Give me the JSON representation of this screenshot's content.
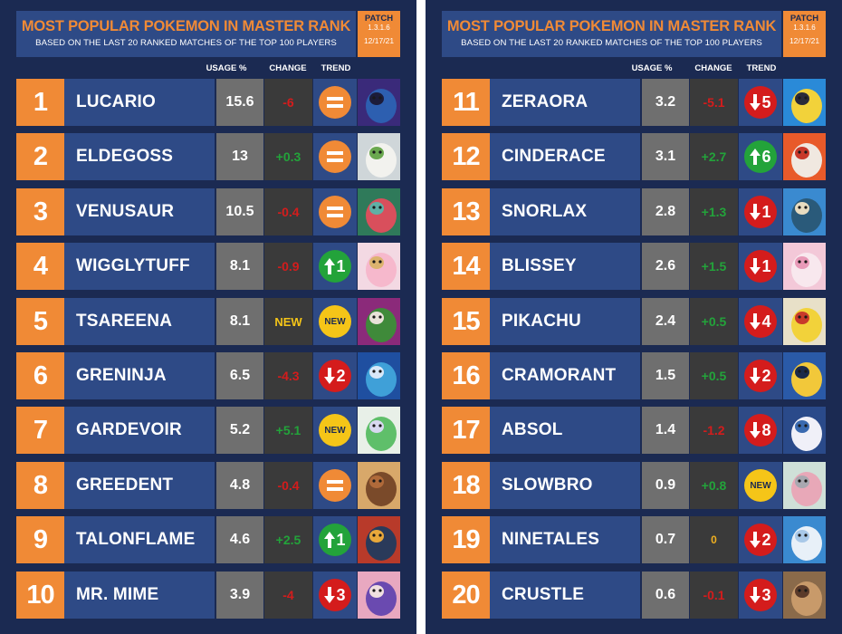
{
  "colors": {
    "background": "#1b2a52",
    "row_blue": "#2e4a86",
    "orange": "#f08a36",
    "usage_gray": "#6f6f6f",
    "change_dark": "#3a3a3a",
    "positive": "#23a33a",
    "negative": "#d41c1c",
    "new_yellow": "#f5c518"
  },
  "panels": [
    {
      "header": {
        "title": "MOST POPULAR POKEMON IN MASTER RANK",
        "subtitle": "BASED ON THE LAST 20 RANKED MATCHES OF THE TOP 100 PLAYERS",
        "patch_label": "PATCH",
        "patch_version": "1.3.1.6",
        "patch_date": "12/17/21"
      },
      "columns": {
        "usage": "USAGE %",
        "change": "CHANGE",
        "trend": "TREND"
      },
      "rows": [
        {
          "rank": "1",
          "name": "LUCARIO",
          "usage": "15.6",
          "change": "-6",
          "change_type": "neg",
          "trend_type": "eq",
          "trend_value": "",
          "portrait_colors": [
            "#3a2a7a",
            "#2d5fb0",
            "#1c1c3a"
          ],
          "portrait_icon": "lucario-icon"
        },
        {
          "rank": "2",
          "name": "ELDEGOSS",
          "usage": "13",
          "change": "+0.3",
          "change_type": "pos",
          "trend_type": "eq",
          "trend_value": "",
          "portrait_colors": [
            "#cfd6d9",
            "#f2f2ee",
            "#6aa84f"
          ],
          "portrait_icon": "eldegoss-icon"
        },
        {
          "rank": "3",
          "name": "VENUSAUR",
          "usage": "10.5",
          "change": "-0.4",
          "change_type": "neg",
          "trend_type": "eq",
          "trend_value": "",
          "portrait_colors": [
            "#2f7a5a",
            "#d94f5c",
            "#5fb0a5"
          ],
          "portrait_icon": "venusaur-icon"
        },
        {
          "rank": "4",
          "name": "WIGGLYTUFF",
          "usage": "8.1",
          "change": "-0.9",
          "change_type": "neg",
          "trend_type": "up",
          "trend_value": "1",
          "portrait_colors": [
            "#f3d9e3",
            "#f6b8cc",
            "#dcb36e"
          ],
          "portrait_icon": "wigglytuff-icon"
        },
        {
          "rank": "5",
          "name": "TSAREENA",
          "usage": "8.1",
          "change": "NEW",
          "change_type": "new",
          "trend_type": "new",
          "trend_value": "NEW",
          "portrait_colors": [
            "#8b2a7a",
            "#3f8a3a",
            "#e8e2d8"
          ],
          "portrait_icon": "tsareena-icon"
        },
        {
          "rank": "6",
          "name": "GRENINJA",
          "usage": "6.5",
          "change": "-4.3",
          "change_type": "neg",
          "trend_type": "down",
          "trend_value": "2",
          "portrait_colors": [
            "#1f4fa0",
            "#3fa0d8",
            "#d8e8f8"
          ],
          "portrait_icon": "greninja-icon"
        },
        {
          "rank": "7",
          "name": "GARDEVOIR",
          "usage": "5.2",
          "change": "+5.1",
          "change_type": "pos",
          "trend_type": "new",
          "trend_value": "NEW",
          "portrait_colors": [
            "#e8f0e8",
            "#5fbf6a",
            "#d8d8f0"
          ],
          "portrait_icon": "gardevoir-icon"
        },
        {
          "rank": "8",
          "name": "GREEDENT",
          "usage": "4.8",
          "change": "-0.4",
          "change_type": "neg",
          "trend_type": "eq",
          "trend_value": "",
          "portrait_colors": [
            "#d8a86a",
            "#7a4a2a",
            "#b06a3a"
          ],
          "portrait_icon": "greedent-icon"
        },
        {
          "rank": "9",
          "name": "TALONFLAME",
          "usage": "4.6",
          "change": "+2.5",
          "change_type": "pos",
          "trend_type": "up",
          "trend_value": "1",
          "portrait_colors": [
            "#b83a2a",
            "#2a3a5a",
            "#e8a83a"
          ],
          "portrait_icon": "talonflame-icon"
        },
        {
          "rank": "10",
          "name": "MR. MIME",
          "usage": "3.9",
          "change": "-4",
          "change_type": "neg",
          "trend_type": "down",
          "trend_value": "3",
          "portrait_colors": [
            "#e8a8c0",
            "#6a4ab0",
            "#f0e0e0"
          ],
          "portrait_icon": "mr-mime-icon"
        }
      ]
    },
    {
      "header": {
        "title": "MOST POPULAR POKEMON IN MASTER RANK",
        "subtitle": "BASED ON THE LAST 20 RANKED MATCHES OF THE TOP 100 PLAYERS",
        "patch_label": "PATCH",
        "patch_version": "1.3.1.6",
        "patch_date": "12/17/21"
      },
      "columns": {
        "usage": "USAGE %",
        "change": "CHANGE",
        "trend": "TREND"
      },
      "rows": [
        {
          "rank": "11",
          "name": "ZERAORA",
          "usage": "3.2",
          "change": "-5.1",
          "change_type": "neg",
          "trend_type": "down",
          "trend_value": "5",
          "portrait_colors": [
            "#2a8ad8",
            "#f2d23a",
            "#2a2a3a"
          ],
          "portrait_icon": "zeraora-icon"
        },
        {
          "rank": "12",
          "name": "CINDERACE",
          "usage": "3.1",
          "change": "+2.7",
          "change_type": "pos",
          "trend_type": "up",
          "trend_value": "6",
          "portrait_colors": [
            "#e85a2a",
            "#f0e8e0",
            "#c8382a"
          ],
          "portrait_icon": "cinderace-icon"
        },
        {
          "rank": "13",
          "name": "SNORLAX",
          "usage": "2.8",
          "change": "+1.3",
          "change_type": "pos",
          "trend_type": "down",
          "trend_value": "1",
          "portrait_colors": [
            "#3a8ad0",
            "#2a5a7a",
            "#e8dcc0"
          ],
          "portrait_icon": "snorlax-icon"
        },
        {
          "rank": "14",
          "name": "BLISSEY",
          "usage": "2.6",
          "change": "+1.5",
          "change_type": "pos",
          "trend_type": "down",
          "trend_value": "1",
          "portrait_colors": [
            "#f3c8d8",
            "#f8e8ee",
            "#e89ab8"
          ],
          "portrait_icon": "blissey-icon"
        },
        {
          "rank": "15",
          "name": "PIKACHU",
          "usage": "2.4",
          "change": "+0.5",
          "change_type": "pos",
          "trend_type": "down",
          "trend_value": "4",
          "portrait_colors": [
            "#e8e0c8",
            "#f2d23a",
            "#c83a2a"
          ],
          "portrait_icon": "pikachu-icon"
        },
        {
          "rank": "16",
          "name": "CRAMORANT",
          "usage": "1.5",
          "change": "+0.5",
          "change_type": "pos",
          "trend_type": "down",
          "trend_value": "2",
          "portrait_colors": [
            "#2a5aa8",
            "#f2c83a",
            "#1c2a4a"
          ],
          "portrait_icon": "cramorant-icon"
        },
        {
          "rank": "17",
          "name": "ABSOL",
          "usage": "1.4",
          "change": "-1.2",
          "change_type": "neg",
          "trend_type": "down",
          "trend_value": "8",
          "portrait_colors": [
            "#2a4a8a",
            "#f0f0f8",
            "#3a6ab0"
          ],
          "portrait_icon": "absol-icon"
        },
        {
          "rank": "18",
          "name": "SLOWBRO",
          "usage": "0.9",
          "change": "+0.8",
          "change_type": "pos",
          "trend_type": "new",
          "trend_value": "NEW",
          "portrait_colors": [
            "#cfe0d8",
            "#e8a8b8",
            "#a8a8b0"
          ],
          "portrait_icon": "slowbro-icon"
        },
        {
          "rank": "19",
          "name": "NINETALES",
          "usage": "0.7",
          "change": "0",
          "change_type": "zero",
          "trend_type": "down",
          "trend_value": "2",
          "portrait_colors": [
            "#3a8ad0",
            "#e8f0f8",
            "#a8c8e8"
          ],
          "portrait_icon": "ninetales-icon"
        },
        {
          "rank": "20",
          "name": "CRUSTLE",
          "usage": "0.6",
          "change": "-0.1",
          "change_type": "neg",
          "trend_type": "down",
          "trend_value": "3",
          "portrait_colors": [
            "#8a6a4a",
            "#c89a6a",
            "#5a3a2a"
          ],
          "portrait_icon": "crustle-icon"
        }
      ]
    }
  ]
}
